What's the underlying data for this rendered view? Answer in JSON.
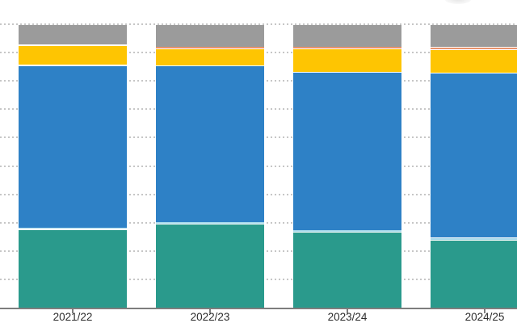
{
  "chart_data": {
    "type": "bar",
    "stacking": "100-percent-stacked",
    "orientation": "vertical",
    "title": "",
    "xlabel": "",
    "ylabel": "",
    "categories": [
      "2021/22",
      "2022/23",
      "2023/24",
      "2024/25"
    ],
    "series": [
      {
        "name": "teal-segment",
        "color": "#2a9a8c",
        "values": [
          27.8,
          29.7,
          26.8,
          24.0
        ]
      },
      {
        "name": "light-blue-segment",
        "color": "#a5d8ea",
        "values": [
          0.5,
          0.5,
          0.6,
          0.9
        ]
      },
      {
        "name": "blue-segment",
        "color": "#2e81c6",
        "values": [
          57.4,
          55.4,
          55.9,
          58.0
        ]
      },
      {
        "name": "yellow-segment",
        "color": "#fec502",
        "values": [
          7.1,
          6.0,
          8.2,
          8.3
        ]
      },
      {
        "name": "orange-segment",
        "color": "#e9926a",
        "values": [
          0.2,
          0.5,
          0.6,
          0.8
        ]
      },
      {
        "name": "gray-segment",
        "color": "#9b9b9b",
        "values": [
          7.0,
          7.9,
          7.9,
          8.0
        ]
      }
    ],
    "ylim": [
      0,
      100
    ],
    "gridline_step": 10,
    "gridline_style": "dotted",
    "gridline_color": "#c6c6c6",
    "y_axis_labels_visible": false,
    "legend_visible": false,
    "axis_color": "#7d7d7d",
    "label_color": "#2b2b2b",
    "background_color": "#ffffff",
    "segment_border_color": "#ffffff"
  }
}
